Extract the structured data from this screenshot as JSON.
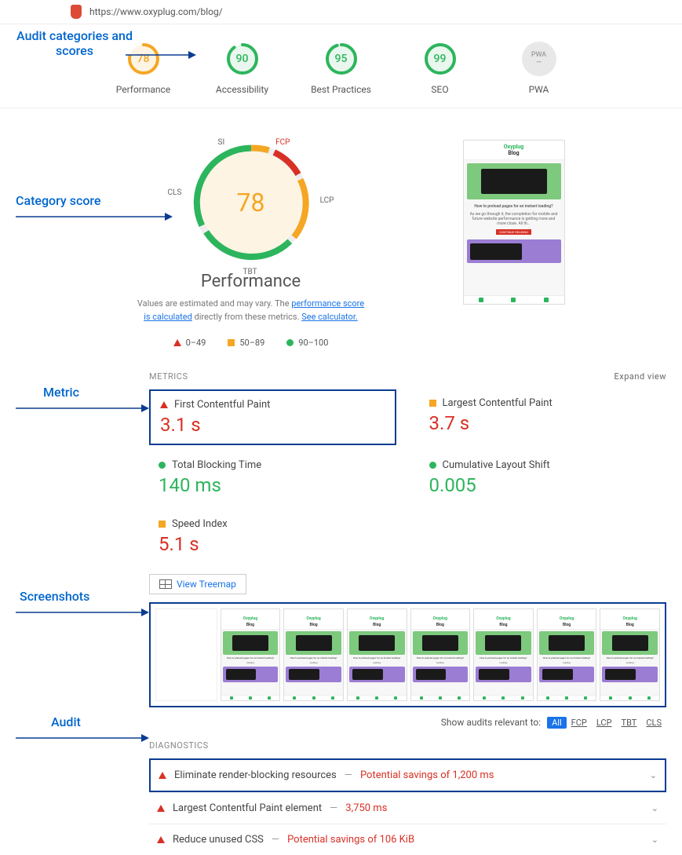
{
  "url": "https://www.oxyplug.com/blog/",
  "annotations": {
    "categories": "Audit categories and scores",
    "category_score": "Category score",
    "metric": "Metric",
    "screenshots": "Screenshots",
    "audit": "Audit"
  },
  "categories": [
    {
      "label": "Performance",
      "score": 78,
      "color": "#f5a623",
      "bg": "#fdf4e3"
    },
    {
      "label": "Accessibility",
      "score": 90,
      "color": "#2db55d",
      "bg": "#e9f7ee"
    },
    {
      "label": "Best Practices",
      "score": 95,
      "color": "#2db55d",
      "bg": "#e9f7ee"
    },
    {
      "label": "SEO",
      "score": 99,
      "color": "#2db55d",
      "bg": "#e9f7ee"
    }
  ],
  "pwa_label": "PWA",
  "performance_gauge": {
    "score": 78,
    "title": "Performance",
    "desc_prefix": "Values are estimated and may vary. The ",
    "desc_link1": "performance score is calculated",
    "desc_mid": " directly from these metrics. ",
    "desc_link2": "See calculator.",
    "segments": [
      {
        "label": "SI",
        "angle_pos": "top-left",
        "color": "#f5a623"
      },
      {
        "label": "FCP",
        "angle_pos": "top-right",
        "color": "#d83025"
      },
      {
        "label": "LCP",
        "angle_pos": "right",
        "color": "#f5a623"
      },
      {
        "label": "TBT",
        "angle_pos": "bottom",
        "color": "#2db55d"
      },
      {
        "label": "CLS",
        "angle_pos": "left",
        "color": "#2db55d"
      }
    ]
  },
  "legend": [
    {
      "range": "0–49",
      "shape": "tri",
      "color": "#d83025"
    },
    {
      "range": "50–89",
      "shape": "sq",
      "color": "#f5a623"
    },
    {
      "range": "90–100",
      "shape": "cir",
      "color": "#2db55d"
    }
  ],
  "metrics_header": "METRICS",
  "expand_view": "Expand view",
  "metrics": [
    {
      "label": "First Contentful Paint",
      "value": "3.1 s",
      "shape": "tri",
      "val_color": "red",
      "boxed": true
    },
    {
      "label": "Largest Contentful Paint",
      "value": "3.7 s",
      "shape": "sq",
      "val_color": "red",
      "boxed": false
    },
    {
      "label": "Total Blocking Time",
      "value": "140 ms",
      "shape": "cir",
      "val_color": "green",
      "boxed": false
    },
    {
      "label": "Cumulative Layout Shift",
      "value": "0.005",
      "shape": "cir",
      "val_color": "green",
      "boxed": false
    },
    {
      "label": "Speed Index",
      "value": "5.1 s",
      "shape": "sq",
      "val_color": "red",
      "boxed": false
    }
  ],
  "treemap_label": "View Treemap",
  "filmstrip_frames": 8,
  "filter_label": "Show audits relevant to:",
  "filters": [
    "All",
    "FCP",
    "LCP",
    "TBT",
    "CLS"
  ],
  "diagnostics_header": "DIAGNOSTICS",
  "audits": [
    {
      "title": "Eliminate render-blocking resources",
      "savings": "Potential savings of 1,200 ms",
      "boxed": true
    },
    {
      "title": "Largest Contentful Paint element",
      "savings": "3,750 ms",
      "boxed": false
    },
    {
      "title": "Reduce unused CSS",
      "savings": "Potential savings of 106 KiB",
      "boxed": false
    }
  ],
  "thumb_content": {
    "brand": "Oxyplug",
    "page": "Blog",
    "article_title": "How to preload pages for an instant loading?",
    "article_text": "As we go through it, the completion for mobile and future website performance is getting more and more close. All th...",
    "cta": "CONTINUE READING"
  }
}
